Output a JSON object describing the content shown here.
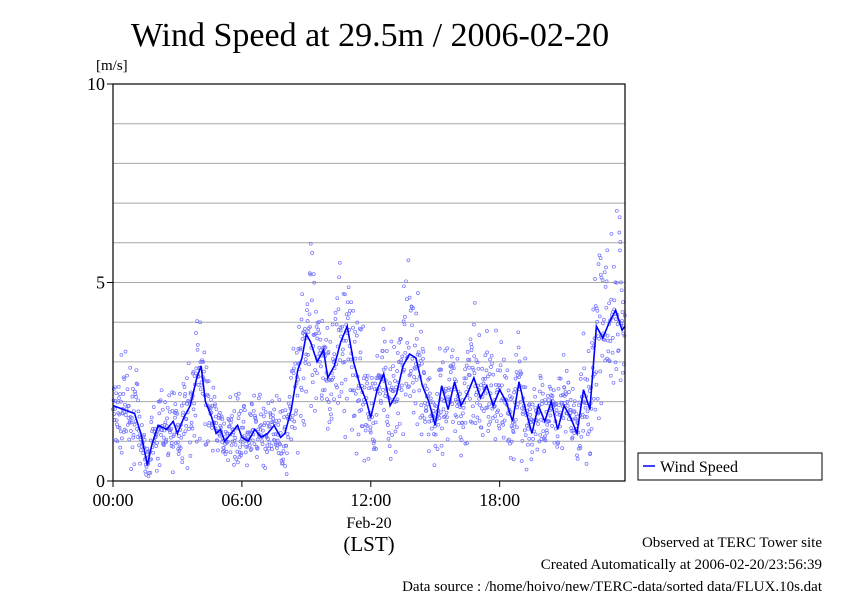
{
  "chart_data": {
    "type": "line",
    "title": "Wind Speed at 29.5m / 2006-02-20",
    "ylabel": "[m/s]",
    "xlabel_date": "Feb-20",
    "xlabel_tz": "(LST)",
    "xlim_hours": [
      0,
      23.833
    ],
    "ylim": [
      0,
      10
    ],
    "y_ticks": [
      {
        "value": 0,
        "label": "0"
      },
      {
        "value": 5,
        "label": "5"
      },
      {
        "value": 10,
        "label": "10"
      }
    ],
    "y_gridlines": [
      1,
      2,
      3,
      4,
      5,
      6,
      7,
      8,
      9
    ],
    "x_ticks": [
      {
        "value": 0,
        "label": "00:00"
      },
      {
        "value": 6,
        "label": "06:00"
      },
      {
        "value": 12,
        "label": "12:00"
      },
      {
        "value": 18,
        "label": "18:00"
      }
    ],
    "grid": true,
    "legend": {
      "position": "right",
      "entries": [
        "Wind Speed"
      ]
    },
    "series": [
      {
        "name": "Wind Speed",
        "color": "#0000ff",
        "scatter_color": "#6f6fff",
        "x": [
          0.0,
          0.5,
          1.0,
          1.3,
          1.6,
          1.8,
          2.1,
          2.5,
          2.8,
          3.0,
          3.3,
          3.6,
          3.9,
          4.1,
          4.3,
          4.6,
          4.8,
          5.0,
          5.2,
          5.5,
          5.8,
          6.0,
          6.3,
          6.6,
          6.9,
          7.2,
          7.5,
          7.8,
          8.0,
          8.3,
          8.6,
          8.8,
          9.0,
          9.2,
          9.5,
          9.8,
          10.0,
          10.3,
          10.6,
          10.9,
          11.2,
          11.5,
          11.8,
          12.0,
          12.3,
          12.6,
          12.9,
          13.2,
          13.5,
          13.8,
          14.1,
          14.4,
          14.7,
          15.0,
          15.3,
          15.6,
          15.9,
          16.2,
          16.5,
          16.8,
          17.1,
          17.4,
          17.7,
          18.0,
          18.3,
          18.6,
          18.9,
          19.2,
          19.5,
          19.8,
          20.1,
          20.4,
          20.7,
          21.0,
          21.3,
          21.6,
          21.9,
          22.2,
          22.5,
          22.8,
          23.1,
          23.4,
          23.7,
          23.83
        ],
        "y": [
          1.9,
          1.8,
          1.7,
          1.2,
          0.4,
          0.9,
          1.4,
          1.3,
          1.5,
          1.2,
          1.6,
          1.9,
          2.6,
          2.9,
          2.0,
          1.6,
          1.2,
          1.3,
          1.0,
          1.2,
          1.4,
          1.1,
          1.0,
          1.3,
          1.1,
          1.2,
          1.4,
          1.1,
          1.2,
          1.8,
          2.8,
          3.1,
          3.7,
          3.5,
          3.0,
          3.3,
          2.6,
          2.9,
          3.5,
          3.9,
          3.0,
          2.4,
          2.0,
          1.6,
          2.3,
          2.7,
          1.9,
          2.2,
          2.9,
          3.2,
          3.1,
          2.4,
          2.0,
          1.4,
          2.4,
          1.8,
          2.5,
          1.9,
          2.2,
          2.6,
          2.1,
          2.4,
          1.9,
          2.3,
          2.0,
          1.5,
          2.5,
          1.8,
          1.2,
          1.9,
          1.5,
          2.0,
          1.3,
          1.9,
          1.6,
          1.2,
          2.3,
          1.8,
          3.9,
          3.6,
          4.0,
          4.3,
          3.8,
          3.9
        ]
      }
    ]
  },
  "footer": {
    "observed": "Observed at TERC Tower site",
    "created": "Created Automatically at 2006-02-20/23:56:39",
    "source": "Data source : /home/hoivo/new/TERC-data/sorted  data/FLUX.10s.dat"
  }
}
